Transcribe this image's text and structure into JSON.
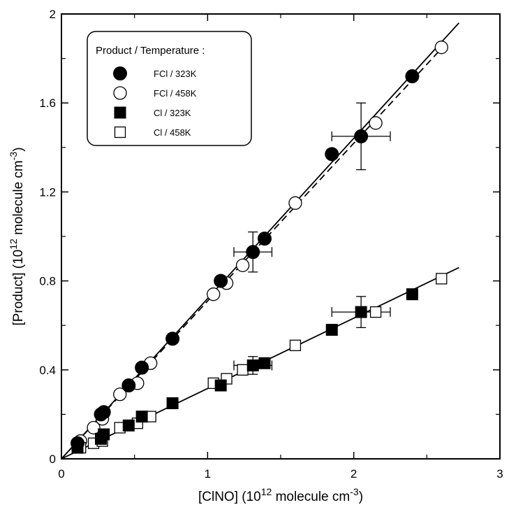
{
  "chart_data": {
    "type": "scatter",
    "title": "",
    "xlabel": "[ClNO] (10^12 molecule cm^-3)",
    "ylabel": "[Product] (10^12 molecule cm^-3)",
    "xlabel_parts": {
      "a": "[ClNO] (10",
      "sup1": "12",
      "b": " molecule cm",
      "sup2": "-3",
      "c": ")"
    },
    "ylabel_parts": {
      "a": "[Product] (10",
      "sup1": "12",
      "b": " molecule cm",
      "sup2": "-3",
      "c": ")"
    },
    "xlim": [
      0,
      3
    ],
    "ylim": [
      0,
      2
    ],
    "xticks": [
      "0",
      "1",
      "2",
      "3"
    ],
    "yticks": [
      "0",
      "0.4",
      "0.8",
      "1.2",
      "1.6",
      "2"
    ],
    "grid": false,
    "legend": {
      "placement": "top-left",
      "title": "Product / Temperature :",
      "entries": [
        "FCl / 323K",
        "FCl / 458K",
        "Cl / 323K",
        "Cl / 458K"
      ]
    },
    "series": [
      {
        "name": "FCl / 323K",
        "marker": "filled-circle",
        "x": [
          0.11,
          0.27,
          0.29,
          0.46,
          0.55,
          0.76,
          1.09,
          1.31,
          1.39,
          1.85,
          2.05,
          2.4
        ],
        "y": [
          0.07,
          0.2,
          0.21,
          0.33,
          0.41,
          0.54,
          0.8,
          0.93,
          0.99,
          1.37,
          1.45,
          1.72
        ]
      },
      {
        "name": "FCl / 458K",
        "marker": "open-circle",
        "x": [
          0.13,
          0.22,
          0.28,
          0.4,
          0.52,
          0.61,
          1.04,
          1.13,
          1.24,
          1.6,
          2.15,
          2.6
        ],
        "y": [
          0.08,
          0.14,
          0.18,
          0.29,
          0.34,
          0.43,
          0.74,
          0.79,
          0.87,
          1.15,
          1.51,
          1.85
        ]
      },
      {
        "name": "Cl / 323K",
        "marker": "filled-square",
        "x": [
          0.11,
          0.27,
          0.29,
          0.46,
          0.55,
          0.76,
          1.09,
          1.31,
          1.39,
          1.85,
          2.05,
          2.4
        ],
        "y": [
          0.05,
          0.09,
          0.11,
          0.15,
          0.19,
          0.25,
          0.33,
          0.42,
          0.43,
          0.58,
          0.66,
          0.74
        ]
      },
      {
        "name": "Cl / 458K",
        "marker": "open-square",
        "x": [
          0.13,
          0.22,
          0.28,
          0.4,
          0.52,
          0.61,
          1.04,
          1.13,
          1.24,
          1.6,
          2.15,
          2.6
        ],
        "y": [
          0.05,
          0.07,
          0.08,
          0.14,
          0.16,
          0.19,
          0.34,
          0.36,
          0.4,
          0.51,
          0.66,
          0.81
        ]
      }
    ],
    "fit_lines": [
      {
        "style": "solid",
        "x": [
          0,
          2.72
        ],
        "y": [
          0,
          1.96
        ]
      },
      {
        "style": "dashed",
        "x": [
          0,
          2.65
        ],
        "y": [
          0,
          1.88
        ]
      },
      {
        "style": "solid",
        "x": [
          0,
          2.72
        ],
        "y": [
          0,
          0.86
        ]
      }
    ],
    "error_bars": [
      {
        "x": 1.31,
        "y": 0.93,
        "xerr": 0.13,
        "yerr": 0.09
      },
      {
        "x": 2.05,
        "y": 1.45,
        "xerr": 0.2,
        "yerr": 0.15
      },
      {
        "x": 1.31,
        "y": 0.42,
        "xerr": 0.13,
        "yerr": 0.04
      },
      {
        "x": 2.05,
        "y": 0.66,
        "xerr": 0.2,
        "yerr": 0.07
      }
    ]
  }
}
